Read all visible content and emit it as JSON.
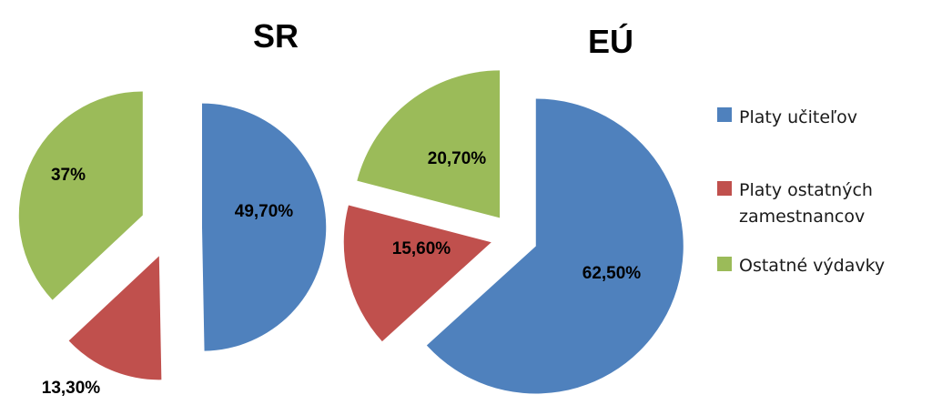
{
  "chart_data": [
    {
      "type": "pie",
      "title": "SR",
      "categories": [
        "Platy učiteľov",
        "Platy ostatných zamestnancov",
        "Ostatné výdavky"
      ],
      "values": [
        49.7,
        13.3,
        37.0
      ],
      "labels": [
        "49,70%",
        "13,30%",
        "37%"
      ],
      "exploded": true
    },
    {
      "type": "pie",
      "title": "EÚ",
      "categories": [
        "Platy učiteľov",
        "Platy ostatných zamestnancov",
        "Ostatné výdavky"
      ],
      "values": [
        62.5,
        15.6,
        20.7
      ],
      "labels": [
        "62,50%",
        "15,60%",
        "20,70%"
      ],
      "exploded": true
    }
  ],
  "legend": {
    "placement": "right",
    "items": [
      {
        "lines": [
          "Platy učiteľov"
        ],
        "color": "#4F81BD"
      },
      {
        "lines": [
          "Platy ostatných",
          "zamestnancov"
        ],
        "color": "#C0504D"
      },
      {
        "lines": [
          "Ostatné výdavky"
        ],
        "color": "#9BBB59"
      }
    ]
  },
  "colors": [
    "#4F81BD",
    "#C0504D",
    "#9BBB59"
  ]
}
